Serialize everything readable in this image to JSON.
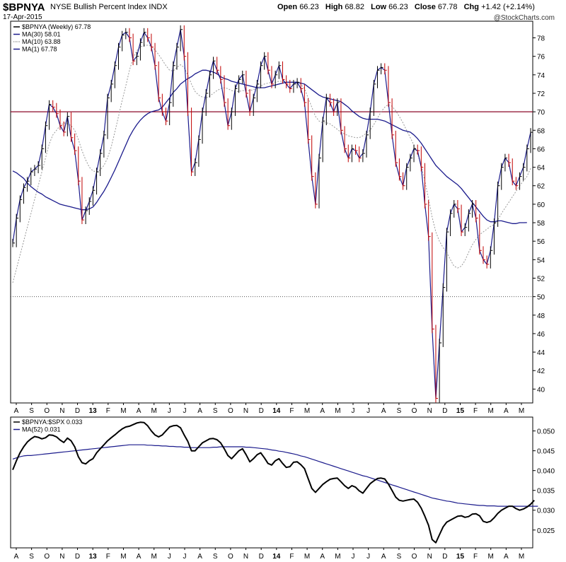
{
  "header": {
    "symbol": "$BPNYA",
    "description": "NYSE Bullish Percent Index",
    "exchange": "INDX",
    "date": "17-Apr-2015",
    "open_label": "Open",
    "open": "66.23",
    "high_label": "High",
    "high": "68.82",
    "low_label": "Low",
    "low": "66.23",
    "close_label": "Close",
    "close": "67.78",
    "chg_label": "Chg",
    "chg": "+1.42 (+2.14%)",
    "brand": "@StockCharts.com"
  },
  "colors": {
    "price": "#000000",
    "down_bar": "#c00000",
    "ma30": "#1a1a8c",
    "ma10": "#999999",
    "ref70": "#8b0a2a",
    "ratio": "#000000",
    "ma52": "#1a1a8c"
  },
  "x_axis": {
    "labels": [
      "A",
      "S",
      "O",
      "N",
      "D",
      "13",
      "F",
      "M",
      "A",
      "M",
      "J",
      "J",
      "A",
      "S",
      "O",
      "N",
      "D",
      "14",
      "F",
      "M",
      "A",
      "M",
      "J",
      "J",
      "A",
      "S",
      "O",
      "N",
      "D",
      "15",
      "F",
      "M",
      "A",
      "M"
    ],
    "bold": [
      "13",
      "14",
      "15"
    ]
  },
  "chart_data": [
    {
      "type": "line",
      "panel": "main",
      "legend_placement": "top-left",
      "legend": [
        {
          "name": "$BPNYA (Weekly) 67.78",
          "style": "price"
        },
        {
          "name": "MA(30) 58.01",
          "style": "ma30"
        },
        {
          "name": "MA(10) 63.88",
          "style": "ma10"
        },
        {
          "name": "MA(1) 67.78",
          "style": "ma1"
        }
      ],
      "y_ticks": [
        40,
        42,
        44,
        46,
        48,
        50,
        52,
        54,
        56,
        58,
        60,
        62,
        64,
        66,
        68,
        70,
        72,
        74,
        76,
        78
      ],
      "ylim": [
        38.5,
        79.8
      ],
      "reference_lines": [
        {
          "y": 70,
          "style": "solid"
        },
        {
          "y": 50,
          "style": "dotted"
        }
      ],
      "x_start": "2012-07-27",
      "x_step_weeks": 1,
      "series": [
        {
          "name": "$BPNYA (Weekly)",
          "values": [
            55.8,
            58.5,
            60.5,
            61.8,
            62.5,
            63.5,
            63.8,
            64.2,
            66.0,
            68.5,
            70.8,
            70.5,
            69.8,
            68.5,
            67.8,
            69.5,
            67.2,
            65.8,
            62.5,
            58.3,
            59.3,
            60.3,
            61.5,
            63.5,
            65.5,
            67.5,
            71.5,
            73.0,
            75.0,
            77.0,
            78.3,
            78.6,
            78.0,
            75.5,
            76.0,
            77.5,
            78.6,
            78.0,
            77.0,
            75.0,
            71.5,
            70.0,
            69.0,
            71.0,
            75.0,
            77.0,
            78.9,
            76.0,
            70.0,
            63.5,
            64.5,
            67.0,
            70.0,
            72.0,
            74.0,
            75.5,
            74.5,
            73.5,
            71.0,
            68.5,
            70.0,
            72.5,
            73.5,
            74.0,
            72.0,
            70.0,
            71.5,
            73.0,
            75.0,
            76.0,
            74.5,
            73.0,
            74.0,
            75.0,
            73.5,
            73.0,
            72.5,
            73.0,
            73.2,
            72.5,
            71.0,
            67.0,
            63.0,
            60.0,
            65.0,
            69.0,
            71.5,
            71.0,
            70.0,
            71.0,
            68.0,
            66.0,
            65.0,
            66.0,
            65.8,
            65.0,
            65.5,
            67.5,
            70.0,
            73.0,
            74.5,
            74.8,
            74.5,
            71.0,
            67.5,
            64.5,
            63.0,
            62.0,
            64.0,
            65.0,
            66.0,
            65.8,
            64.0,
            60.0,
            56.5,
            46.5,
            39.0,
            45.0,
            51.0,
            57.0,
            59.0,
            60.0,
            59.5,
            57.0,
            57.5,
            59.0,
            60.0,
            58.5,
            55.0,
            54.0,
            53.5,
            55.0,
            58.0,
            62.0,
            64.0,
            65.0,
            64.5,
            62.5,
            62.0,
            63.0,
            64.0,
            66.0,
            67.78
          ]
        },
        {
          "name": "MA(30)",
          "values": [
            63.6,
            63.4,
            63.1,
            62.8,
            62.3,
            61.9,
            61.6,
            61.3,
            61.1,
            60.8,
            60.6,
            60.4,
            60.2,
            60.0,
            59.9,
            59.8,
            59.7,
            59.6,
            59.5,
            59.4,
            59.4,
            59.5,
            59.7,
            60.2,
            60.8,
            61.4,
            62.1,
            62.9,
            63.7,
            64.6,
            65.5,
            66.4,
            67.3,
            68.0,
            68.6,
            69.1,
            69.5,
            69.8,
            70.0,
            70.1,
            70.2,
            70.5,
            71.0,
            71.5,
            72.1,
            72.5,
            73.0,
            73.3,
            73.6,
            73.8,
            74.1,
            74.3,
            74.5,
            74.5,
            74.4,
            74.3,
            74.1,
            73.8,
            73.6,
            73.5,
            73.3,
            73.2,
            73.1,
            73.0,
            72.9,
            72.8,
            72.7,
            72.6,
            72.6,
            72.6,
            72.7,
            72.8,
            72.9,
            73.0,
            73.1,
            73.2,
            73.2,
            73.2,
            73.2,
            73.1,
            73.0,
            72.7,
            72.4,
            72.1,
            71.8,
            71.6,
            71.5,
            71.4,
            71.3,
            71.2,
            71.1,
            70.8,
            70.5,
            70.1,
            69.8,
            69.5,
            69.3,
            69.2,
            69.2,
            69.2,
            69.2,
            69.1,
            69.0,
            68.8,
            68.6,
            68.4,
            68.2,
            68.0,
            67.9,
            67.8,
            67.5,
            67.1,
            66.6,
            66.0,
            65.4,
            64.8,
            64.2,
            63.8,
            63.4,
            63.0,
            62.7,
            62.4,
            62.1,
            61.7,
            61.2,
            60.7,
            60.2,
            59.7,
            59.2,
            58.7,
            58.3,
            58.1,
            58.1,
            58.2,
            58.2,
            58.1,
            58.0,
            57.9,
            57.9,
            58.0,
            58.0,
            58.01
          ]
        },
        {
          "name": "MA(10)",
          "values": [
            51.5,
            53.0,
            54.5,
            56.0,
            57.5,
            59.0,
            60.5,
            62.0,
            63.5,
            65.0,
            66.5,
            67.5,
            68.0,
            68.5,
            68.8,
            68.7,
            68.5,
            68.0,
            67.0,
            65.8,
            64.8,
            64.0,
            63.6,
            63.5,
            63.7,
            64.2,
            65.0,
            66.2,
            67.8,
            69.5,
            71.2,
            72.8,
            74.5,
            75.8,
            76.6,
            77.0,
            77.2,
            77.2,
            77.1,
            76.7,
            76.2,
            75.6,
            75.0,
            74.5,
            74.4,
            74.8,
            75.1,
            74.8,
            74.0,
            73.0,
            72.2,
            71.8,
            71.6,
            71.5,
            71.7,
            72.0,
            72.3,
            72.5,
            72.6,
            72.5,
            72.3,
            72.2,
            72.2,
            72.3,
            72.3,
            72.3,
            72.4,
            72.6,
            72.8,
            73.0,
            73.1,
            73.2,
            73.2,
            73.3,
            73.3,
            73.2,
            73.2,
            73.2,
            73.2,
            73.0,
            72.5,
            71.5,
            70.5,
            69.5,
            69.0,
            68.8,
            68.8,
            68.7,
            68.4,
            68.1,
            67.8,
            67.6,
            67.4,
            67.3,
            67.2,
            67.2,
            67.4,
            67.7,
            68.0,
            68.6,
            69.3,
            70.0,
            70.5,
            70.8,
            70.6,
            70.1,
            69.5,
            68.8,
            68.0,
            67.2,
            66.4,
            65.4,
            64.2,
            62.5,
            60.6,
            58.6,
            57.0,
            56.0,
            55.3,
            54.8,
            54.0,
            53.3,
            53.1,
            53.3,
            53.9,
            54.8,
            55.6,
            56.2,
            56.7,
            57.0,
            57.3,
            57.6,
            57.8,
            58.3,
            59.0,
            59.6,
            60.2,
            60.8,
            61.4,
            62.0,
            62.5,
            63.0,
            63.88
          ]
        }
      ]
    },
    {
      "type": "line",
      "panel": "lower",
      "legend_placement": "top-left",
      "legend": [
        {
          "name": "$BPNYA:$SPX 0.033",
          "style": "ratio"
        },
        {
          "name": "MA(52) 0.031",
          "style": "ma52"
        }
      ],
      "y_ticks": [
        0.025,
        0.03,
        0.035,
        0.04,
        0.045,
        0.05
      ],
      "y_tick_labels": [
        "0.025",
        "0.030",
        "0.035",
        "0.040",
        "0.045",
        "0.050"
      ],
      "ylim": [
        0.0205,
        0.0535
      ],
      "x_start": "2012-07-27",
      "x_step_weeks": 1,
      "series": [
        {
          "name": "$BPNYA:$SPX",
          "values": [
            0.0402,
            0.0425,
            0.0445,
            0.046,
            0.0472,
            0.048,
            0.0486,
            0.0484,
            0.048,
            0.0483,
            0.049,
            0.0489,
            0.0485,
            0.0477,
            0.0471,
            0.0482,
            0.0475,
            0.046,
            0.0435,
            0.042,
            0.0417,
            0.0425,
            0.043,
            0.0445,
            0.0455,
            0.0465,
            0.0475,
            0.0483,
            0.049,
            0.0498,
            0.0505,
            0.051,
            0.0512,
            0.0516,
            0.052,
            0.0522,
            0.0521,
            0.0513,
            0.05,
            0.049,
            0.0485,
            0.049,
            0.05,
            0.051,
            0.0513,
            0.0514,
            0.0508,
            0.049,
            0.0474,
            0.045,
            0.045,
            0.046,
            0.047,
            0.0475,
            0.048,
            0.0481,
            0.0478,
            0.047,
            0.0455,
            0.0438,
            0.043,
            0.044,
            0.045,
            0.0455,
            0.044,
            0.0422,
            0.043,
            0.044,
            0.0445,
            0.0432,
            0.0418,
            0.0414,
            0.0425,
            0.043,
            0.0418,
            0.0408,
            0.041,
            0.0421,
            0.0422,
            0.0415,
            0.0405,
            0.038,
            0.0355,
            0.0345,
            0.0355,
            0.0365,
            0.0372,
            0.0378,
            0.038,
            0.0381,
            0.0372,
            0.0362,
            0.0355,
            0.0362,
            0.0358,
            0.0349,
            0.0343,
            0.0355,
            0.0367,
            0.0374,
            0.038,
            0.0381,
            0.0379,
            0.0366,
            0.035,
            0.0333,
            0.0325,
            0.0323,
            0.0325,
            0.0327,
            0.0328,
            0.032,
            0.0305,
            0.0285,
            0.0262,
            0.0226,
            0.0218,
            0.0238,
            0.0258,
            0.027,
            0.0275,
            0.028,
            0.0285,
            0.0286,
            0.0282,
            0.0284,
            0.029,
            0.0291,
            0.0286,
            0.0272,
            0.0269,
            0.0272,
            0.0281,
            0.0292,
            0.03,
            0.0305,
            0.031,
            0.031,
            0.0304,
            0.03,
            0.0303,
            0.0308,
            0.0315,
            0.0325
          ]
        },
        {
          "name": "MA(52)",
          "values": [
            0.0429,
            0.0432,
            0.0435,
            0.0437,
            0.0438,
            0.0438,
            0.0439,
            0.044,
            0.0441,
            0.0442,
            0.0443,
            0.0444,
            0.0445,
            0.0446,
            0.0447,
            0.0448,
            0.0449,
            0.045,
            0.0451,
            0.0452,
            0.0453,
            0.0454,
            0.0455,
            0.0456,
            0.0457,
            0.0458,
            0.0459,
            0.046,
            0.0461,
            0.0462,
            0.0463,
            0.0464,
            0.0465,
            0.0465,
            0.0465,
            0.0465,
            0.0465,
            0.0464,
            0.0464,
            0.0463,
            0.0463,
            0.0462,
            0.0462,
            0.0461,
            0.0461,
            0.046,
            0.046,
            0.0459,
            0.0459,
            0.0458,
            0.0458,
            0.0458,
            0.0458,
            0.0458,
            0.0458,
            0.0459,
            0.0459,
            0.046,
            0.046,
            0.046,
            0.046,
            0.046,
            0.046,
            0.046,
            0.0459,
            0.0459,
            0.0458,
            0.0457,
            0.0456,
            0.0455,
            0.0454,
            0.0452,
            0.0451,
            0.0449,
            0.0448,
            0.0446,
            0.0444,
            0.0442,
            0.044,
            0.0437,
            0.0435,
            0.0432,
            0.0429,
            0.0426,
            0.0423,
            0.042,
            0.0417,
            0.0414,
            0.0411,
            0.0408,
            0.0405,
            0.0402,
            0.0399,
            0.0396,
            0.0393,
            0.039,
            0.0387,
            0.0385,
            0.0382,
            0.0379,
            0.0376,
            0.0373,
            0.037,
            0.0367,
            0.0364,
            0.0361,
            0.0358,
            0.0355,
            0.0352,
            0.0349,
            0.0346,
            0.0343,
            0.034,
            0.0337,
            0.0334,
            0.0331,
            0.0329,
            0.0327,
            0.0325,
            0.0323,
            0.0322,
            0.032,
            0.0318,
            0.0317,
            0.0316,
            0.0315,
            0.0314,
            0.0313,
            0.0312,
            0.0312,
            0.0311,
            0.0311,
            0.0311,
            0.031,
            0.031,
            0.031,
            0.031,
            0.031,
            0.031,
            0.031,
            0.031,
            0.031,
            0.031,
            0.031,
            0.031
          ]
        }
      ]
    }
  ]
}
